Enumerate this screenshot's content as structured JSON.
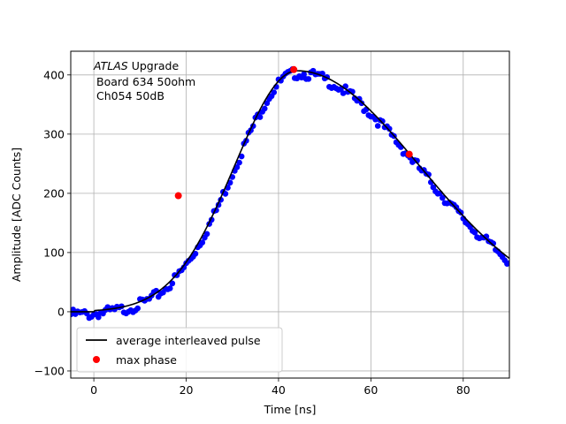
{
  "chart_data": {
    "type": "scatter",
    "xlabel": "Time [ns]",
    "ylabel": "Amplitude [ADC Counts]",
    "xlim": [
      -5,
      90
    ],
    "ylim": [
      -112,
      440
    ],
    "x_ticks": [
      0,
      20,
      40,
      60,
      80
    ],
    "y_ticks": [
      -100,
      0,
      100,
      200,
      300,
      400
    ],
    "grid": true,
    "legend_placement": "lower-left",
    "annotation": {
      "line1_italic": "ATLAS",
      "line1_rest": " Upgrade",
      "line2": "Board 634 50ohm",
      "line3": "Ch054 50dB"
    },
    "pulse_model": {
      "baseline": 0,
      "peak_amplitude": 407,
      "peak_time": 44,
      "rise_sigma": 13.5,
      "fall_sigma": 26.5,
      "onset_time": 0,
      "x_start": -5,
      "x_end": 90,
      "sample_step": 0.5
    },
    "series": [
      {
        "name": "average interleaved pulse",
        "kind": "line",
        "color": "#000000"
      },
      {
        "name": "samples",
        "kind": "scatter",
        "color": "#0000ff"
      },
      {
        "name": "max phase",
        "kind": "scatter",
        "color": "#ff0000",
        "x": [
          18.3,
          43.3,
          68.3
        ],
        "y": [
          196,
          409,
          266
        ]
      }
    ],
    "legend_entries": [
      {
        "label": "average interleaved pulse",
        "marker": "line",
        "color": "#000000"
      },
      {
        "label": "max phase",
        "marker": "dot",
        "color": "#ff0000"
      }
    ]
  }
}
